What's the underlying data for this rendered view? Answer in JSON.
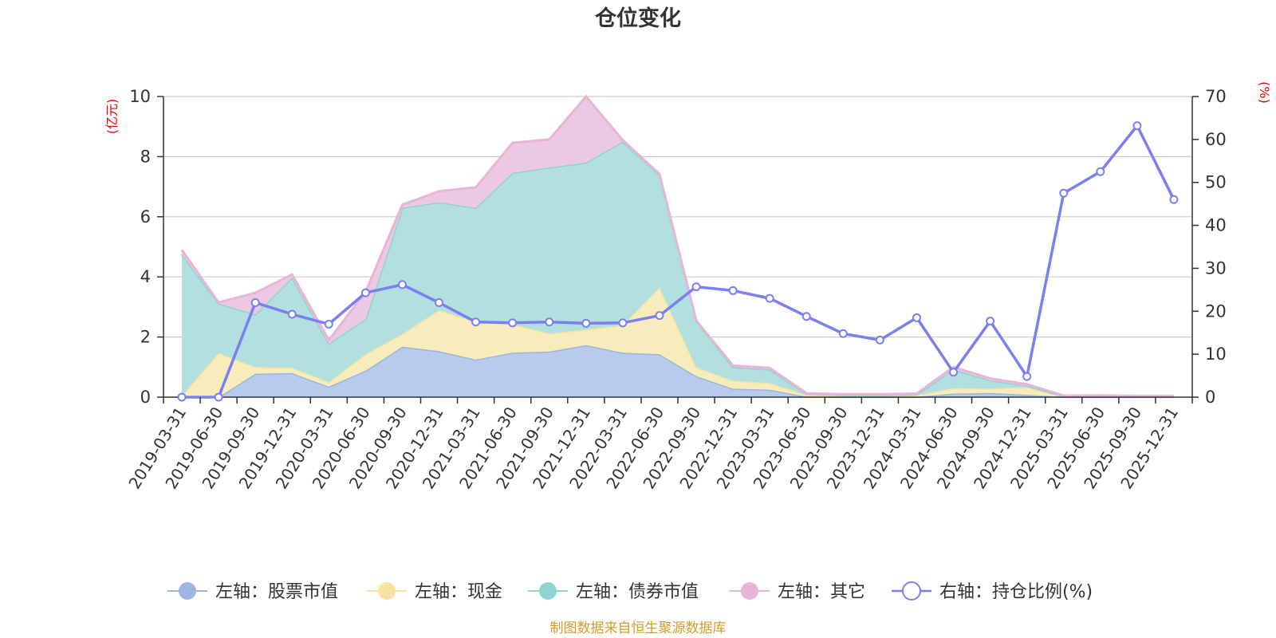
{
  "chart_data": {
    "type": "area",
    "title": "仓位变化",
    "left_axis_unit": "(亿元)",
    "right_axis_unit": "(%)",
    "ylim_left": [
      0,
      10
    ],
    "yticks_left": [
      0,
      2,
      4,
      6,
      8,
      10
    ],
    "ylim_right": [
      0,
      70
    ],
    "yticks_right": [
      0,
      10,
      20,
      30,
      40,
      50,
      60,
      70
    ],
    "x": [
      "2019-03-31",
      "2019-06-30",
      "2019-09-30",
      "2019-12-31",
      "2020-03-31",
      "2020-06-30",
      "2020-09-30",
      "2020-12-31",
      "2021-03-31",
      "2021-06-30",
      "2021-09-30",
      "2021-12-31",
      "2022-03-31",
      "2022-06-30",
      "2022-09-30",
      "2022-12-31",
      "2023-03-31",
      "2023-06-30",
      "2023-09-30",
      "2023-12-31",
      "2024-03-31",
      "2024-06-30",
      "2024-09-30",
      "2024-12-31",
      "2025-03-31",
      "2025-06-30",
      "2025-09-30",
      "2025-12-31"
    ],
    "series": [
      {
        "name": "左轴：股票市值",
        "axis": "left",
        "stacked": true,
        "color": "#9bb6e0",
        "fill": "#b8cbea",
        "values": [
          0,
          0,
          0.78,
          0.8,
          0.35,
          0.88,
          1.68,
          1.53,
          1.25,
          1.48,
          1.52,
          1.73,
          1.48,
          1.43,
          0.7,
          0.28,
          0.25,
          0.02,
          0.01,
          0.01,
          0.01,
          0.12,
          0.14,
          0.08,
          0.01,
          0.01,
          0.01,
          0.01
        ]
      },
      {
        "name": "左轴：现金",
        "axis": "left",
        "stacked": true,
        "color": "#f7e3a0",
        "fill": "#f8ecbc",
        "values": [
          0.05,
          1.47,
          0.22,
          0.18,
          0.15,
          0.55,
          0.42,
          1.37,
          1.25,
          0.95,
          0.6,
          0.52,
          0.92,
          2.22,
          0.3,
          0.27,
          0.22,
          0.05,
          0.04,
          0.04,
          0.06,
          0.18,
          0.15,
          0.25,
          0.01,
          0.02,
          0.01,
          0.01
        ]
      },
      {
        "name": "左轴：债券市值",
        "axis": "left",
        "stacked": true,
        "color": "#8fd3d3",
        "fill": "#b2e0df",
        "values": [
          4.7,
          1.65,
          1.75,
          3.0,
          1.28,
          1.17,
          4.2,
          3.58,
          3.8,
          5.03,
          5.52,
          5.55,
          6.1,
          3.75,
          1.53,
          0.45,
          0.45,
          0.04,
          0.02,
          0.02,
          0.02,
          0.62,
          0.27,
          0.05,
          0.01,
          0.01,
          0.01,
          0.01
        ]
      },
      {
        "name": "左轴：其它",
        "axis": "left",
        "stacked": true,
        "color": "#e8b4d8",
        "fill": "#ecc9e2",
        "values": [
          0.15,
          0.03,
          0.72,
          0.1,
          0.12,
          0.9,
          0.1,
          0.37,
          0.68,
          1.0,
          0.93,
          2.2,
          0.05,
          0.02,
          0.02,
          0.05,
          0.05,
          0.02,
          0.03,
          0.03,
          0.03,
          0.08,
          0.06,
          0.05,
          0.02,
          0.02,
          0.01,
          0.01
        ]
      },
      {
        "name": "右轴：持仓比例(%)",
        "axis": "right",
        "stacked": false,
        "color": "#7b7ff0",
        "values": [
          0,
          0,
          22,
          19.3,
          17,
          24.3,
          26.2,
          22,
          17.5,
          17.3,
          17.5,
          17.2,
          17.3,
          19,
          25.7,
          24.8,
          23,
          18.8,
          14.8,
          13.3,
          18.5,
          5.8,
          17.7,
          4.8,
          47.5,
          52.5,
          63.2,
          46
        ]
      }
    ]
  },
  "legend": [
    {
      "label": "左轴：股票市值",
      "marker": "circle-filled"
    },
    {
      "label": "左轴：现金",
      "marker": "circle-filled"
    },
    {
      "label": "左轴：债券市值",
      "marker": "circle-filled"
    },
    {
      "label": "左轴：其它",
      "marker": "circle-filled"
    },
    {
      "label": "右轴：持仓比例(%)",
      "marker": "circle-hollow"
    }
  ],
  "source_text": "制图数据来自恒生聚源数据库"
}
